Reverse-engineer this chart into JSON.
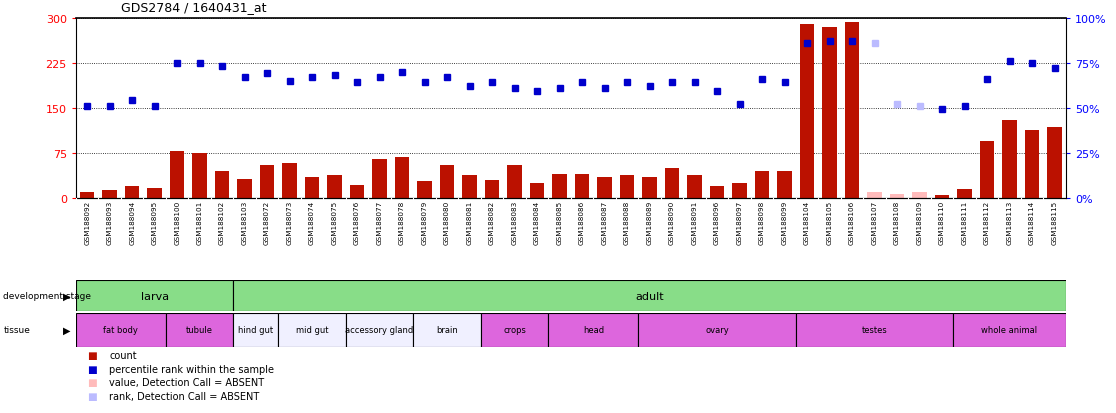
{
  "title": "GDS2784 / 1640431_at",
  "samples": [
    "GSM188092",
    "GSM188093",
    "GSM188094",
    "GSM188095",
    "GSM188100",
    "GSM188101",
    "GSM188102",
    "GSM188103",
    "GSM188072",
    "GSM188073",
    "GSM188074",
    "GSM188075",
    "GSM188076",
    "GSM188077",
    "GSM188078",
    "GSM188079",
    "GSM188080",
    "GSM188081",
    "GSM188082",
    "GSM188083",
    "GSM188084",
    "GSM188085",
    "GSM188086",
    "GSM188087",
    "GSM188088",
    "GSM188089",
    "GSM188090",
    "GSM188091",
    "GSM188096",
    "GSM188097",
    "GSM188098",
    "GSM188099",
    "GSM188104",
    "GSM188105",
    "GSM188106",
    "GSM188107",
    "GSM188108",
    "GSM188109",
    "GSM188110",
    "GSM188111",
    "GSM188112",
    "GSM188113",
    "GSM188114",
    "GSM188115"
  ],
  "counts": [
    10,
    13,
    20,
    16,
    78,
    75,
    45,
    32,
    55,
    58,
    35,
    38,
    22,
    65,
    68,
    28,
    55,
    38,
    30,
    55,
    25,
    40,
    40,
    35,
    38,
    35,
    50,
    38,
    20,
    25,
    45,
    45,
    290,
    285,
    292,
    9,
    6,
    9,
    5,
    14,
    95,
    130,
    112,
    118
  ],
  "percentile": [
    51,
    51,
    54,
    51,
    75,
    75,
    73,
    67,
    69,
    65,
    67,
    68,
    64,
    67,
    70,
    64,
    67,
    62,
    64,
    61,
    59,
    61,
    64,
    61,
    64,
    62,
    64,
    64,
    59,
    52,
    66,
    64,
    86,
    87,
    87,
    86,
    52,
    51,
    49,
    51,
    66,
    76,
    75,
    72
  ],
  "absent": [
    false,
    false,
    false,
    false,
    false,
    false,
    false,
    false,
    false,
    false,
    false,
    false,
    false,
    false,
    false,
    false,
    false,
    false,
    false,
    false,
    false,
    false,
    false,
    false,
    false,
    false,
    false,
    false,
    false,
    false,
    false,
    false,
    false,
    false,
    false,
    true,
    true,
    true,
    false,
    false,
    false,
    false,
    false,
    false
  ],
  "dev_stage_groups": [
    {
      "label": "larva",
      "start": 0,
      "end": 7
    },
    {
      "label": "adult",
      "start": 7,
      "end": 44
    }
  ],
  "tissue_groups": [
    {
      "label": "fat body",
      "start": 0,
      "end": 4,
      "color": "#dd66dd"
    },
    {
      "label": "tubule",
      "start": 4,
      "end": 7,
      "color": "#dd66dd"
    },
    {
      "label": "hind gut",
      "start": 7,
      "end": 9,
      "color": "#f0f0ff"
    },
    {
      "label": "mid gut",
      "start": 9,
      "end": 12,
      "color": "#f0f0ff"
    },
    {
      "label": "accessory gland",
      "start": 12,
      "end": 15,
      "color": "#f0f0ff"
    },
    {
      "label": "brain",
      "start": 15,
      "end": 18,
      "color": "#f0f0ff"
    },
    {
      "label": "crops",
      "start": 18,
      "end": 21,
      "color": "#dd66dd"
    },
    {
      "label": "head",
      "start": 21,
      "end": 25,
      "color": "#dd66dd"
    },
    {
      "label": "ovary",
      "start": 25,
      "end": 32,
      "color": "#dd66dd"
    },
    {
      "label": "testes",
      "start": 32,
      "end": 39,
      "color": "#dd66dd"
    },
    {
      "label": "whole animal",
      "start": 39,
      "end": 44,
      "color": "#dd66dd"
    }
  ],
  "ylim_left": [
    0,
    300
  ],
  "ylim_right": [
    0,
    100
  ],
  "yticks_left": [
    0,
    75,
    150,
    225,
    300
  ],
  "yticks_right": [
    0,
    25,
    50,
    75,
    100
  ],
  "bar_color": "#bb1100",
  "dot_color": "#0000cc",
  "absent_bar_color": "#ffbbbb",
  "absent_dot_color": "#bbbbff",
  "dev_stage_color": "#88dd88",
  "xtick_bg_color": "#cccccc"
}
